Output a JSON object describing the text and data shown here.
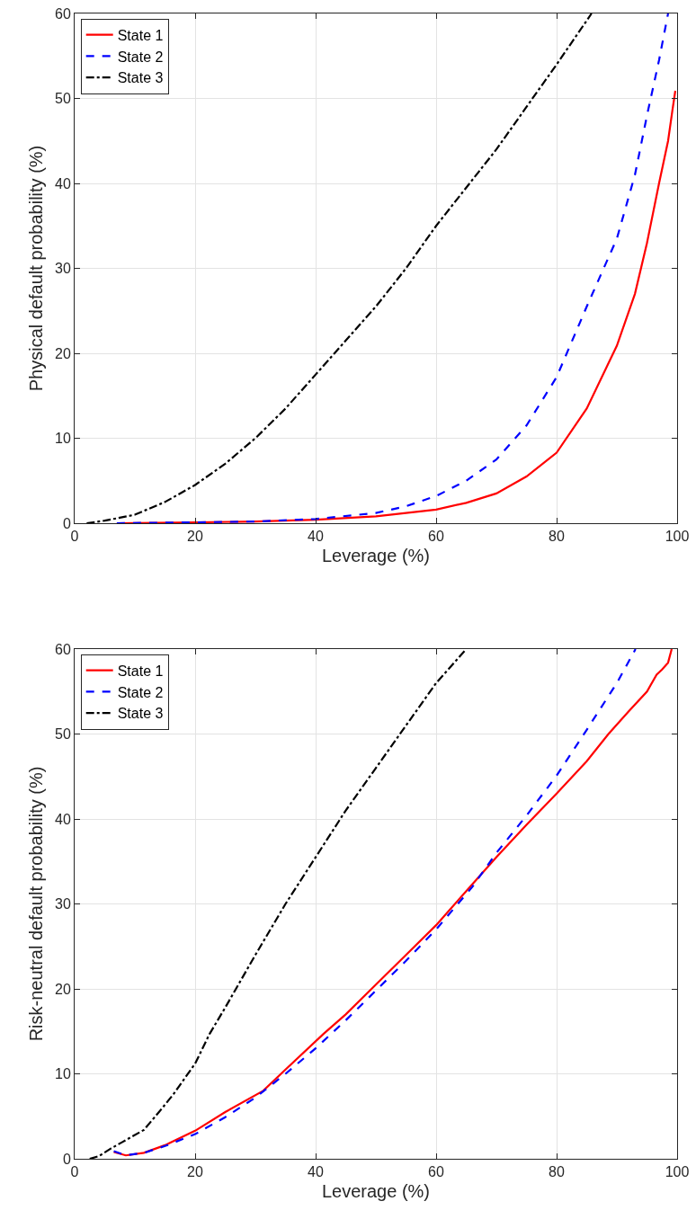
{
  "chart_data": [
    {
      "type": "line",
      "xlabel": "Leverage (%)",
      "ylabel": "Physical default probability (%)",
      "xlim": [
        0,
        100
      ],
      "ylim": [
        0,
        60
      ],
      "xticks": [
        0,
        20,
        40,
        60,
        80,
        100
      ],
      "yticks": [
        0,
        10,
        20,
        30,
        40,
        50,
        60
      ],
      "grid": true,
      "legend": "top left",
      "marker": "none",
      "series": [
        {
          "name": "State 1",
          "color": "#ff0000",
          "line_style": "solid",
          "x": [
            7,
            20,
            30,
            40,
            50,
            60,
            65,
            70,
            75,
            80,
            85,
            90,
            93,
            95,
            97,
            98.5,
            99.2,
            99.7
          ],
          "values": [
            0,
            0.1,
            0.2,
            0.4,
            0.8,
            1.6,
            2.4,
            3.5,
            5.5,
            8.3,
            13.5,
            20.9,
            27,
            33,
            40,
            45,
            48.5,
            50.9
          ]
        },
        {
          "name": "State 2",
          "color": "#0000ff",
          "line_style": "dashed",
          "x": [
            7,
            20,
            30,
            40,
            50,
            55,
            60,
            65,
            70,
            75,
            80,
            85,
            90,
            93,
            95,
            97,
            98.5
          ],
          "values": [
            0,
            0.1,
            0.2,
            0.5,
            1.2,
            2,
            3.2,
            5,
            7.5,
            11.5,
            17.2,
            25.5,
            33.5,
            41,
            48,
            54.5,
            60
          ]
        },
        {
          "name": "State 3",
          "color": "#000000",
          "line_style": "dashdot",
          "x": [
            2,
            5,
            10,
            15,
            20,
            25,
            30,
            35,
            40,
            45,
            50,
            55,
            60,
            65,
            70,
            75,
            80,
            85.8
          ],
          "values": [
            0,
            0.3,
            1,
            2.5,
            4.5,
            7,
            10,
            13.5,
            17.5,
            21.5,
            25.5,
            30,
            35,
            39.5,
            44,
            49,
            54,
            60
          ]
        }
      ]
    },
    {
      "type": "line",
      "xlabel": "Leverage (%)",
      "ylabel": "Risk-neutral default probability (%)",
      "xlim": [
        0,
        100
      ],
      "ylim": [
        0,
        60
      ],
      "xticks": [
        0,
        20,
        40,
        60,
        80,
        100
      ],
      "yticks": [
        0,
        10,
        20,
        30,
        40,
        50,
        60
      ],
      "grid": true,
      "legend": "top left",
      "marker": "none",
      "series": [
        {
          "name": "State 1",
          "color": "#ff0000",
          "line_style": "solid",
          "x": [
            6.5,
            8.5,
            11.5,
            15,
            20,
            25,
            31.3,
            35,
            41.3,
            45,
            50,
            55,
            60,
            65,
            70,
            75,
            80,
            85,
            88.6,
            92,
            95,
            96.6,
            97.5,
            98.5,
            99.1
          ],
          "values": [
            0.8,
            0.4,
            0.7,
            1.6,
            3.3,
            5.5,
            8,
            10.5,
            14.7,
            17,
            20.5,
            24,
            27.5,
            31.5,
            35.5,
            39.3,
            43,
            46.8,
            50,
            52.7,
            55,
            57,
            57.6,
            58.4,
            60
          ]
        },
        {
          "name": "State 2",
          "color": "#0000ff",
          "line_style": "dashed",
          "x": [
            6.5,
            8.5,
            11.5,
            15,
            20,
            25,
            30,
            35,
            40,
            45,
            50,
            55,
            60,
            66,
            70,
            75,
            80,
            85,
            90,
            93.1
          ],
          "values": [
            0.9,
            0.4,
            0.7,
            1.5,
            2.9,
            4.9,
            7.2,
            10,
            13,
            16.3,
            19.8,
            23.3,
            27,
            32,
            36,
            40.4,
            45.1,
            50.5,
            56,
            60
          ]
        },
        {
          "name": "State 3",
          "color": "#000000",
          "line_style": "dashdot",
          "x": [
            2.5,
            4,
            6,
            8,
            11.5,
            14,
            16.4,
            20,
            22.4,
            25,
            30,
            35,
            40,
            45,
            50,
            55,
            60,
            65
          ],
          "values": [
            0,
            0.3,
            1.2,
            2,
            3.4,
            5.5,
            7.6,
            11.2,
            14.7,
            17.8,
            24,
            30,
            35.5,
            41,
            46,
            51,
            56,
            60
          ]
        }
      ]
    }
  ]
}
